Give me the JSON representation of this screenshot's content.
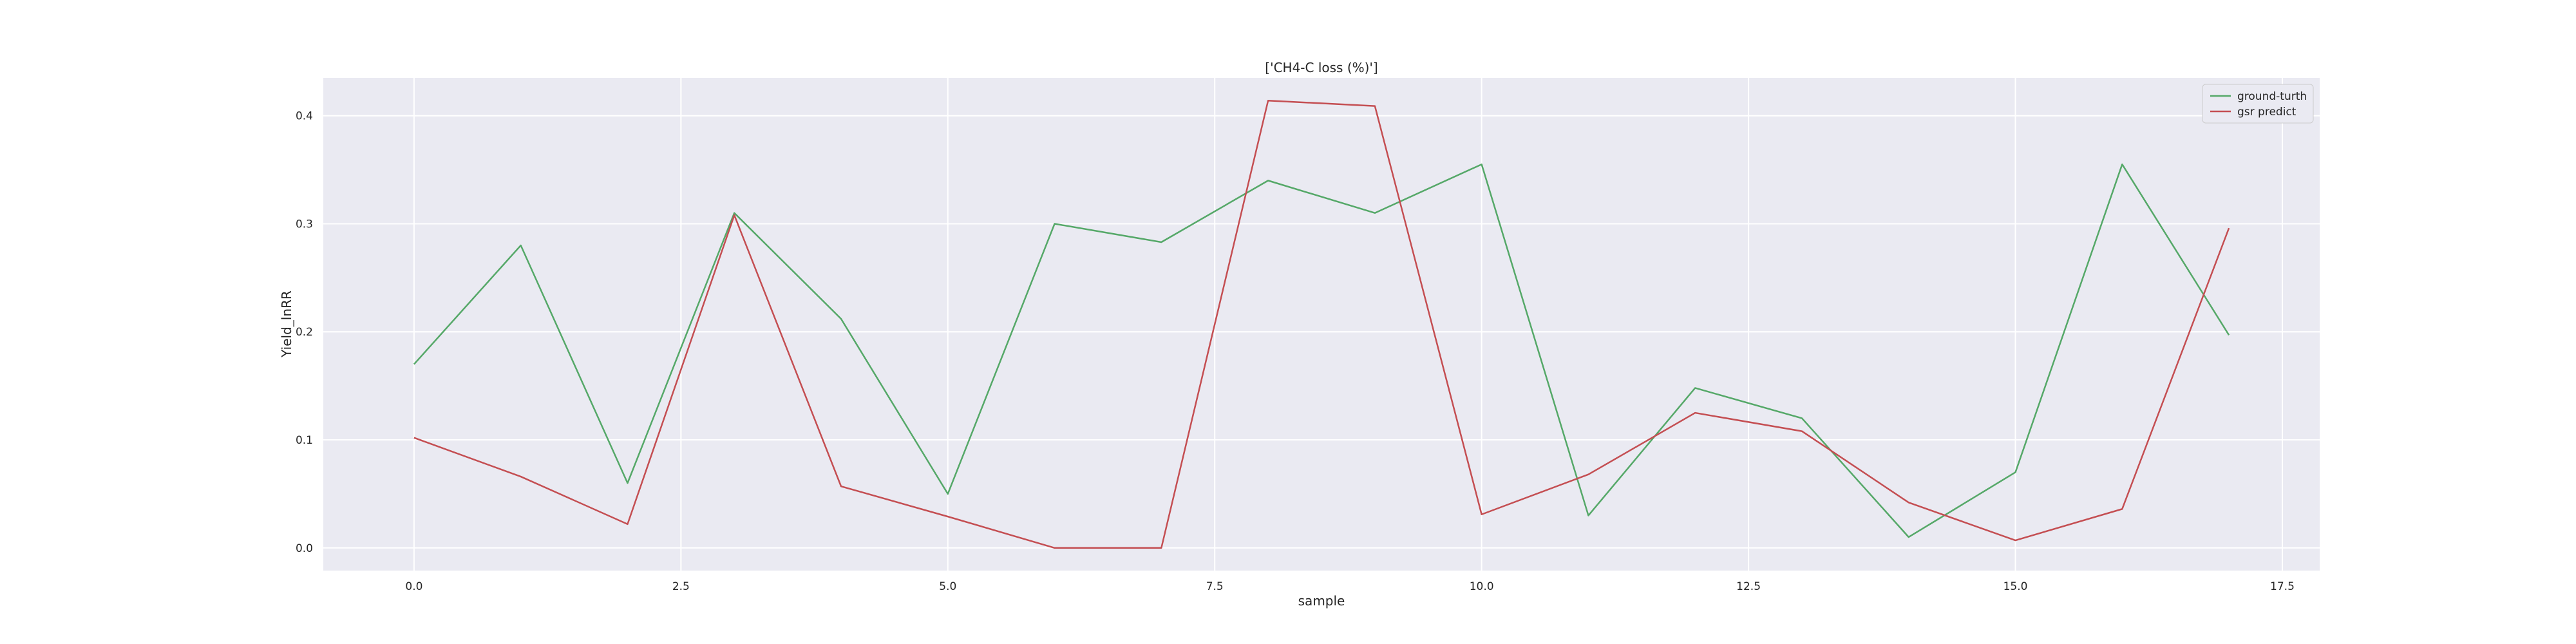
{
  "chart_data": {
    "type": "line",
    "title": "['CH4-C loss (%)']",
    "xlabel": "sample",
    "ylabel": "Yield_lnRR",
    "xlim": [
      -0.85,
      17.85
    ],
    "ylim": [
      -0.021,
      0.435
    ],
    "x_ticks": [
      0.0,
      2.5,
      5.0,
      7.5,
      10.0,
      12.5,
      15.0,
      17.5
    ],
    "x_tick_labels": [
      "0.0",
      "2.5",
      "5.0",
      "7.5",
      "10.0",
      "12.5",
      "15.0",
      "17.5"
    ],
    "y_ticks": [
      0.0,
      0.1,
      0.2,
      0.3,
      0.4
    ],
    "y_tick_labels": [
      "0.0",
      "0.1",
      "0.2",
      "0.3",
      "0.4"
    ],
    "grid": true,
    "legend_position": "top-right",
    "x": [
      0,
      1,
      2,
      3,
      4,
      5,
      6,
      7,
      8,
      9,
      10,
      11,
      12,
      13,
      14,
      15,
      16,
      17
    ],
    "series": [
      {
        "name": "ground-turth",
        "color": "#55a868",
        "values": [
          0.17,
          0.28,
          0.06,
          0.31,
          0.212,
          0.05,
          0.3,
          0.283,
          0.34,
          0.31,
          0.355,
          0.03,
          0.148,
          0.12,
          0.01,
          0.07,
          0.355,
          0.197
        ]
      },
      {
        "name": "gsr predict",
        "color": "#c44e52",
        "values": [
          0.102,
          0.066,
          0.022,
          0.308,
          0.057,
          0.029,
          0.0,
          0.0,
          0.414,
          0.409,
          0.031,
          0.068,
          0.125,
          0.108,
          0.042,
          0.007,
          0.036,
          0.296
        ]
      }
    ]
  },
  "colors": {
    "plot_background": "#eaeaf2",
    "grid": "#ffffff"
  }
}
